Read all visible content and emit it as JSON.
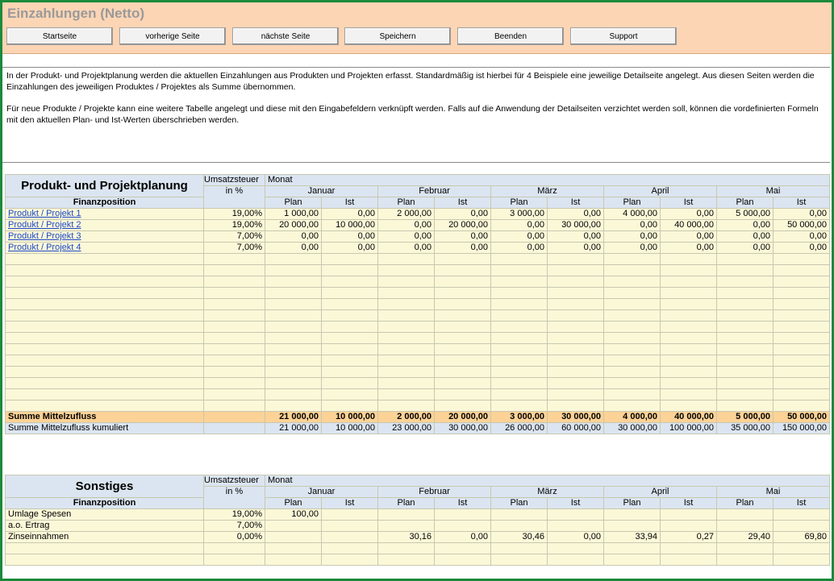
{
  "page": {
    "title": "Einzahlungen (Netto)"
  },
  "toolbar": {
    "buttons": [
      "Startseite",
      "vorherige Seite",
      "nächste Seite",
      "Speichern",
      "Beenden",
      "Support"
    ]
  },
  "description": {
    "p1": "In der Produkt- und Projektplanung werden die aktuellen Einzahlungen aus Produkten und Projekten erfasst. Standardmäßig ist hierbei für 4 Beispiele eine jeweilige Detailseite angelegt. Aus diesen Seiten werden die Einzahlungen des jeweiligen Produktes / Projektes als Summe übernommen.",
    "p2": "Für neue Produkte / Projekte kann eine weitere Tabelle angelegt und diese mit den Eingabefeldern verknüpft werden. Falls auf die Anwendung der Detailseiten verzichtet werden soll, können die vordefinierten Formeln mit den aktuellen Plan- und Ist-Werten überschrieben werden."
  },
  "table1": {
    "title": "Produkt- und Projektplanung",
    "finanzposition": "Finanzposition",
    "ust_line1": "Umsatzsteuer",
    "ust_line2": "in %",
    "monat": "Monat",
    "months": [
      "Januar",
      "Februar",
      "März",
      "April",
      "Mai"
    ],
    "plan": "Plan",
    "ist": "Ist",
    "rows": [
      {
        "name": "Produkt / Projekt 1",
        "ust": "19,00%",
        "vals": [
          "1 000,00",
          "0,00",
          "2 000,00",
          "0,00",
          "3 000,00",
          "0,00",
          "4 000,00",
          "0,00",
          "5 000,00",
          "0,00"
        ]
      },
      {
        "name": "Produkt / Projekt 2",
        "ust": "19,00%",
        "vals": [
          "20 000,00",
          "10 000,00",
          "0,00",
          "20 000,00",
          "0,00",
          "30 000,00",
          "0,00",
          "40 000,00",
          "0,00",
          "50 000,00"
        ]
      },
      {
        "name": "Produkt / Projekt 3",
        "ust": "7,00%",
        "vals": [
          "0,00",
          "0,00",
          "0,00",
          "0,00",
          "0,00",
          "0,00",
          "0,00",
          "0,00",
          "0,00",
          "0,00"
        ]
      },
      {
        "name": "Produkt / Projekt 4",
        "ust": "7,00%",
        "vals": [
          "0,00",
          "0,00",
          "0,00",
          "0,00",
          "0,00",
          "0,00",
          "0,00",
          "0,00",
          "0,00",
          "0,00"
        ]
      }
    ],
    "sum": {
      "label": "Summe Mittelzufluss",
      "vals": [
        "21 000,00",
        "10 000,00",
        "2 000,00",
        "20 000,00",
        "3 000,00",
        "30 000,00",
        "4 000,00",
        "40 000,00",
        "5 000,00",
        "50 000,00"
      ]
    },
    "cum": {
      "label": "Summe Mittelzufluss kumuliert",
      "vals": [
        "21 000,00",
        "10 000,00",
        "23 000,00",
        "30 000,00",
        "26 000,00",
        "60 000,00",
        "30 000,00",
        "100 000,00",
        "35 000,00",
        "150 000,00"
      ]
    }
  },
  "table2": {
    "title": "Sonstiges",
    "finanzposition": "Finanzposition",
    "ust_line1": "Umsatzsteuer",
    "ust_line2": "in %",
    "monat": "Monat",
    "months": [
      "Januar",
      "Februar",
      "März",
      "April",
      "Mai"
    ],
    "plan": "Plan",
    "ist": "Ist",
    "rows": [
      {
        "name": "Umlage Spesen",
        "ust": "19,00%",
        "vals": [
          "100,00",
          "",
          "",
          "",
          "",
          "",
          "",
          "",
          "",
          ""
        ]
      },
      {
        "name": "a.o. Ertrag",
        "ust": "7,00%",
        "vals": [
          "",
          "",
          "",
          "",
          "",
          "",
          "",
          "",
          "",
          ""
        ]
      },
      {
        "name": "Zinseinnahmen",
        "ust": "0,00%",
        "vals": [
          "",
          "",
          "30,16",
          "0,00",
          "30,46",
          "0,00",
          "33,94",
          "0,27",
          "29,40",
          "69,80"
        ]
      }
    ]
  }
}
